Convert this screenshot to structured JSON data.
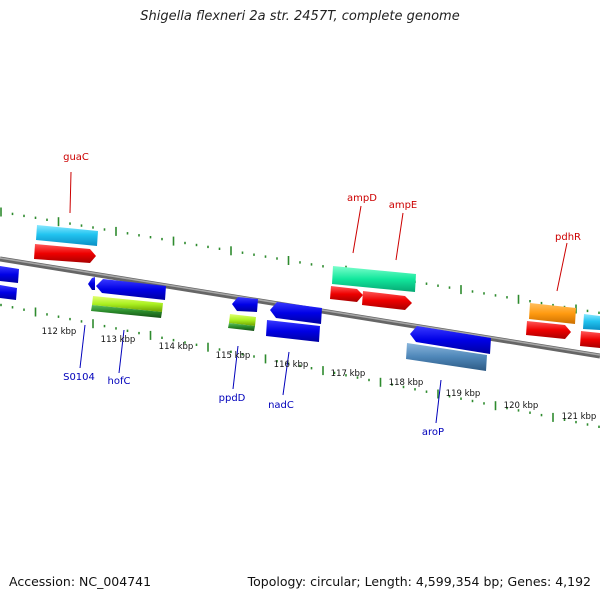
{
  "title": "Shigella flexneri 2a str. 2457T, complete genome",
  "footer": {
    "accession": "Accession: NC_004741",
    "summary": "Topology: circular; Length: 4,599,354 bp; Genes: 4,192"
  },
  "colors": {
    "backbone": "#808080",
    "ticks": "#2e8b2e",
    "forward_label": "#cc0000",
    "reverse_label": "#0000bb"
  },
  "scale_labels": [
    "112 kbp",
    "113 kbp",
    "114 kbp",
    "115 kbp",
    "116 kbp",
    "117 kbp",
    "118 kbp",
    "119 kbp",
    "120 kbp",
    "121 kbp"
  ],
  "forward_genes": [
    "guaC",
    "ampD",
    "ampE",
    "pdhR"
  ],
  "reverse_genes": [
    "S0104",
    "hofC",
    "ppdD",
    "nadC",
    "aroP"
  ]
}
